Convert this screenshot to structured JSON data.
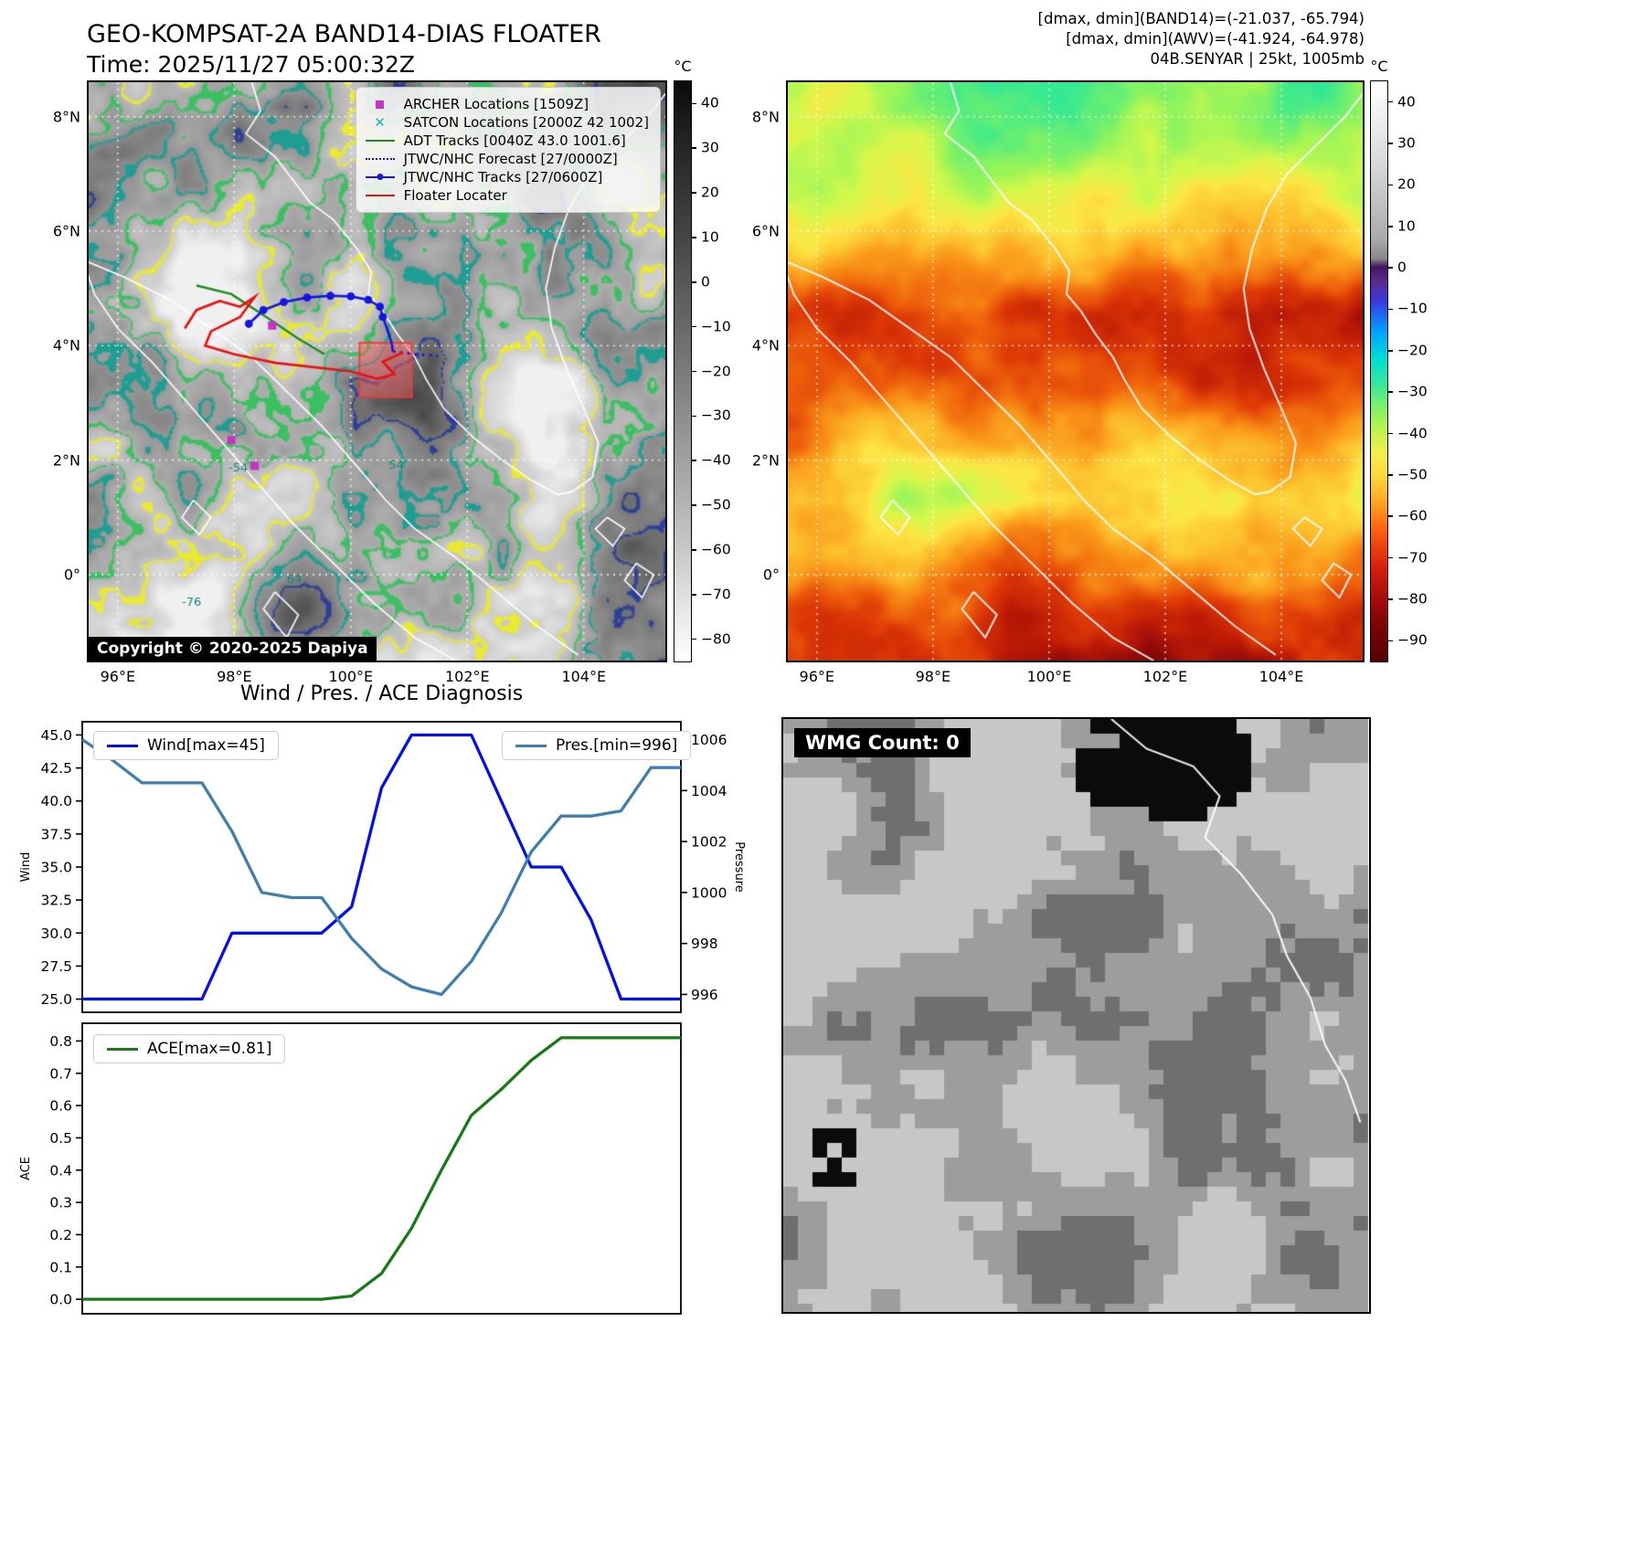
{
  "panel_band14": {
    "title": "GEO-KOMPSAT-2A BAND14-DIAS FLOATER",
    "time_line": "Time: 2025/11/27 05:00:32Z",
    "copyright": "Copyright © 2020-2025 Dapiya",
    "colorbar_unit": "°C",
    "colorbar_ticks": [
      40,
      30,
      20,
      10,
      0,
      -10,
      -20,
      -30,
      -40,
      -50,
      -60,
      -70,
      -80
    ],
    "colorbar_range": [
      45,
      -85
    ],
    "legend": [
      {
        "label": "ARCHER Locations [1509Z]",
        "marker": "square",
        "color": "#c832c8"
      },
      {
        "label": "SATCON Locations [2000Z 42 1002]",
        "marker": "x",
        "color": "#26b3a4"
      },
      {
        "label": "ADT Tracks [0040Z 43.0 1001.6]",
        "marker": "line",
        "color": "#1e8c1e"
      },
      {
        "label": "JTWC/NHC Forecast [27/0000Z]",
        "marker": "dotted",
        "color": "#1414e6"
      },
      {
        "label": "JTWC/NHC Tracks [27/0600Z]",
        "marker": "line-marker",
        "color": "#1414e6"
      },
      {
        "label": "Floater Locater",
        "marker": "line",
        "color": "#e61414"
      }
    ],
    "contour_labels": [
      {
        "text": "-54",
        "lon": 97.9,
        "lat": 1.8
      },
      {
        "text": "54",
        "lon": 100.65,
        "lat": 1.85
      },
      {
        "text": "64",
        "lon": 98.9,
        "lat": -0.15
      },
      {
        "text": "-76",
        "lon": 97.1,
        "lat": -0.55
      }
    ],
    "tracks": {
      "floater": [
        [
          97.15,
          4.3
        ],
        [
          97.35,
          4.62
        ],
        [
          97.75,
          4.78
        ],
        [
          98.1,
          4.68
        ],
        [
          98.35,
          4.85
        ],
        [
          98.1,
          4.5
        ],
        [
          97.6,
          4.25
        ],
        [
          97.5,
          4.0
        ],
        [
          98.0,
          3.85
        ],
        [
          98.7,
          3.7
        ],
        [
          99.4,
          3.62
        ],
        [
          100.0,
          3.55
        ],
        [
          100.45,
          3.42
        ],
        [
          100.75,
          3.5
        ],
        [
          100.55,
          3.72
        ],
        [
          100.9,
          3.88
        ]
      ],
      "jtwc_track": [
        [
          98.25,
          4.38
        ],
        [
          98.5,
          4.62
        ],
        [
          98.85,
          4.76
        ],
        [
          99.25,
          4.84
        ],
        [
          99.65,
          4.87
        ],
        [
          100.0,
          4.86
        ],
        [
          100.3,
          4.8
        ],
        [
          100.5,
          4.68
        ],
        [
          100.55,
          4.5
        ],
        [
          100.62,
          4.3
        ],
        [
          100.7,
          4.05
        ],
        [
          100.72,
          3.9
        ]
      ],
      "jtwc_forecast": [
        [
          100.72,
          3.9
        ],
        [
          101.1,
          3.85
        ],
        [
          101.5,
          3.82
        ]
      ],
      "adt": [
        [
          97.35,
          5.05
        ],
        [
          97.95,
          4.9
        ],
        [
          98.55,
          4.5
        ],
        [
          99.1,
          4.12
        ],
        [
          99.55,
          3.85
        ]
      ],
      "archer_points": [
        [
          98.65,
          4.35
        ],
        [
          97.95,
          2.35
        ],
        [
          98.35,
          1.9
        ]
      ],
      "floater_box": [
        100.15,
        3.1,
        101.05,
        4.05
      ]
    }
  },
  "map_axes": {
    "xticks": [
      {
        "label": "96°E",
        "lon": 96
      },
      {
        "label": "98°E",
        "lon": 98
      },
      {
        "label": "100°E",
        "lon": 100
      },
      {
        "label": "102°E",
        "lon": 102
      },
      {
        "label": "104°E",
        "lon": 104
      }
    ],
    "yticks": [
      {
        "label": "8°N",
        "lat": 8
      },
      {
        "label": "6°N",
        "lat": 6
      },
      {
        "label": "4°N",
        "lat": 4
      },
      {
        "label": "2°N",
        "lat": 2
      },
      {
        "label": "0°",
        "lat": 0
      }
    ]
  },
  "panel_awv": {
    "annotation_lines": [
      "[dmax, dmin](BAND14)=(-21.037, -65.794)",
      "[dmax, dmin](AWV)=(-41.924, -64.978)",
      "04B.SENYAR | 25kt, 1005mb"
    ],
    "colorbar_unit": "°C",
    "colorbar_ticks": [
      40,
      30,
      20,
      10,
      0,
      -10,
      -20,
      -30,
      -40,
      -50,
      -60,
      -70,
      -80,
      -90
    ],
    "colorbar_range": [
      45,
      -95
    ]
  },
  "panel_wmg": {
    "count_label": "WMG Count: 0"
  },
  "chart_data": [
    {
      "type": "line",
      "title": "Wind / Pres. / ACE Diagnosis",
      "x": [
        0,
        1,
        2,
        3,
        4,
        5,
        6,
        7,
        8,
        9,
        10,
        11,
        12,
        13,
        14,
        15,
        16,
        17,
        18,
        19,
        20
      ],
      "ylabel_left": "Wind",
      "ylabel_right": "Pressure",
      "ylim_left": [
        24,
        46
      ],
      "ylim_right": [
        995.3,
        1006.7
      ],
      "yticks_left": [
        25,
        27.5,
        30,
        32.5,
        35,
        37.5,
        40,
        42.5,
        45
      ],
      "yticks_right": [
        996,
        998,
        1000,
        1002,
        1004,
        1006
      ],
      "legend_position": "top-left / top-right",
      "series": [
        {
          "name": "Wind[max=45]",
          "axis": "left",
          "color": "#0010ee",
          "values": [
            25,
            25,
            25,
            25,
            25,
            30,
            30,
            30,
            30,
            32,
            41,
            45,
            45,
            45,
            40,
            35,
            35,
            31,
            25,
            25,
            25
          ]
        },
        {
          "name": "Pres.[min=996]",
          "axis": "right",
          "color": "#3f7fae",
          "values": [
            1006,
            1005.2,
            1004.3,
            1004.3,
            1004.3,
            1002.4,
            1000,
            999.8,
            999.8,
            998.2,
            997,
            996.3,
            996,
            997.3,
            999.2,
            1001.6,
            1003,
            1003,
            1003.2,
            1004.9,
            1004.9
          ]
        }
      ]
    },
    {
      "type": "line",
      "x": [
        0,
        1,
        2,
        3,
        4,
        5,
        6,
        7,
        8,
        9,
        10,
        11,
        12,
        13,
        14,
        15,
        16,
        17,
        18,
        19,
        20
      ],
      "ylabel_left": "ACE",
      "ylim_left": [
        -0.045,
        0.855
      ],
      "yticks_left": [
        0,
        0.1,
        0.2,
        0.3,
        0.4,
        0.5,
        0.6,
        0.7,
        0.8
      ],
      "legend_position": "top-left",
      "series": [
        {
          "name": "ACE[max=0.81]",
          "axis": "left",
          "color": "#177a17",
          "values": [
            0,
            0,
            0,
            0,
            0,
            0,
            0,
            0,
            0,
            0.01,
            0.08,
            0.22,
            0.4,
            0.57,
            0.65,
            0.74,
            0.81,
            0.81,
            0.81,
            0.81,
            0.81
          ]
        }
      ]
    }
  ]
}
